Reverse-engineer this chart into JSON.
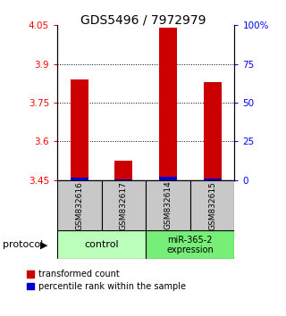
{
  "title": "GDS5496 / 7972979",
  "samples": [
    "GSM832616",
    "GSM832617",
    "GSM832614",
    "GSM832615"
  ],
  "red_values": [
    3.84,
    3.525,
    4.04,
    3.83
  ],
  "blue_values": [
    3.458,
    3.452,
    3.462,
    3.456
  ],
  "ymin": 3.45,
  "ymax": 4.05,
  "yticks_left": [
    3.45,
    3.6,
    3.75,
    3.9,
    4.05
  ],
  "yticks_right_vals": [
    3.45,
    3.6,
    3.75,
    3.9,
    4.05
  ],
  "yticks_right_labels": [
    "0",
    "25",
    "50",
    "75",
    "100%"
  ],
  "bar_width": 0.4,
  "red_color": "#cc0000",
  "blue_color": "#0000cc",
  "sample_bg": "#c8c8c8",
  "ctrl_color": "#bbffbb",
  "mir_color": "#77ee77",
  "legend_red": "transformed count",
  "legend_blue": "percentile rank within the sample",
  "protocol_label": "protocol"
}
